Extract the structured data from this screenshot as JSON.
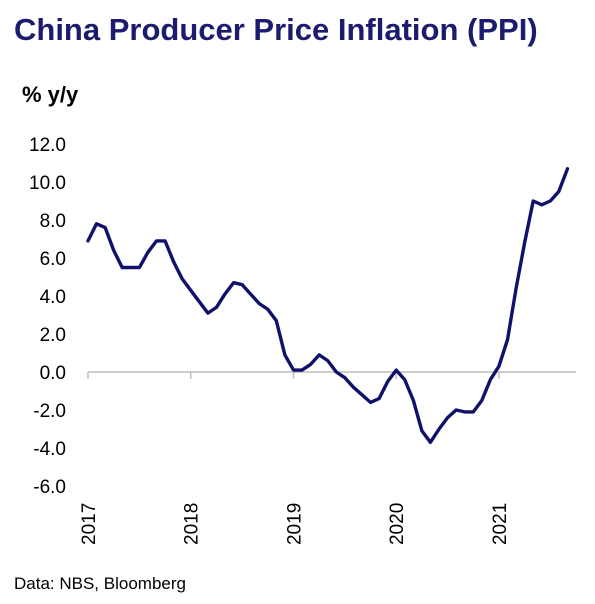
{
  "title": "China Producer Price Inflation (PPI)",
  "source": "Data: NBS, Bloomberg",
  "colors": {
    "line": "#10116a",
    "title": "#1c1c6e",
    "axis": "#bdbdbd"
  },
  "chart_data": {
    "type": "line",
    "title": "China Producer Price Inflation (PPI)",
    "ylabel": "% y/y",
    "xlabel": "",
    "ylim": [
      -6,
      12
    ],
    "yticks": [
      12,
      10,
      8,
      6,
      4,
      2,
      0,
      -2,
      -4,
      -6
    ],
    "ytick_labels": [
      "12.0",
      "10.0",
      "8.0",
      "6.0",
      "4.0",
      "2.0",
      "0.0",
      "-2.0",
      "-4.0",
      "-6.0"
    ],
    "xlim": [
      2017,
      2021.75
    ],
    "xticks": [
      2017,
      2018,
      2019,
      2020,
      2021
    ],
    "xtick_labels": [
      "2017",
      "2018",
      "2019",
      "2020",
      "2021"
    ],
    "grid": false,
    "legend": "none",
    "series": [
      {
        "x": [
          2017.0,
          2017.083,
          2017.167,
          2017.25,
          2017.333,
          2017.417,
          2017.5,
          2017.583,
          2017.667,
          2017.75,
          2017.833,
          2017.917,
          2018.0,
          2018.083,
          2018.167,
          2018.25,
          2018.333,
          2018.417,
          2018.5,
          2018.583,
          2018.667,
          2018.75,
          2018.833,
          2018.917,
          2019.0,
          2019.083,
          2019.167,
          2019.25,
          2019.333,
          2019.417,
          2019.5,
          2019.583,
          2019.667,
          2019.75,
          2019.833,
          2019.917,
          2020.0,
          2020.083,
          2020.167,
          2020.25,
          2020.333,
          2020.417,
          2020.5,
          2020.583,
          2020.667,
          2020.75,
          2020.833,
          2020.917,
          2021.0,
          2021.083,
          2021.167,
          2021.25,
          2021.333,
          2021.417,
          2021.5,
          2021.583,
          2021.667
        ],
        "values": [
          6.9,
          7.8,
          7.6,
          6.4,
          5.5,
          5.5,
          5.5,
          6.3,
          6.9,
          6.9,
          5.8,
          4.9,
          4.3,
          3.7,
          3.1,
          3.4,
          4.1,
          4.7,
          4.6,
          4.1,
          3.6,
          3.3,
          2.7,
          0.9,
          0.1,
          0.1,
          0.4,
          0.9,
          0.6,
          0.0,
          -0.3,
          -0.8,
          -1.2,
          -1.6,
          -1.4,
          -0.5,
          0.1,
          -0.4,
          -1.5,
          -3.1,
          -3.7,
          -3.0,
          -2.4,
          -2.0,
          -2.1,
          -2.1,
          -1.5,
          -0.4,
          0.3,
          1.7,
          4.4,
          6.8,
          9.0,
          8.8,
          9.0,
          9.5,
          10.7
        ]
      }
    ]
  }
}
